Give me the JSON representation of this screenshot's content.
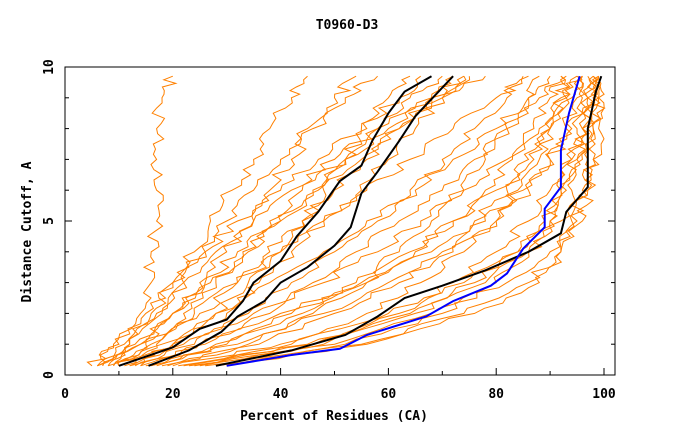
{
  "chart_data": {
    "type": "line",
    "title": "T0960-D3",
    "xlabel": "Percent of Residues (CA)",
    "ylabel": "Distance Cutoff, A",
    "xlim": [
      0,
      102
    ],
    "ylim": [
      0,
      10
    ],
    "xticks": [
      "0",
      "20",
      "40",
      "60",
      "80",
      "100"
    ],
    "yticks": [
      "0",
      "5",
      "10"
    ],
    "grid": false,
    "colors": {
      "background_models": "#ff8000",
      "highlight": "#000000",
      "selected": "#0000ff"
    },
    "background_y_levels": [
      0.3,
      1,
      2,
      3,
      4,
      5,
      6,
      7,
      8,
      9,
      9.7
    ],
    "background_series_x": [
      [
        5,
        9,
        14,
        16,
        16,
        17,
        17,
        17,
        17,
        18,
        20
      ],
      [
        6,
        12,
        18,
        22,
        28,
        35,
        42,
        50,
        58,
        68,
        75
      ],
      [
        6,
        10,
        15,
        20,
        26,
        32,
        40,
        47,
        55,
        62,
        66
      ],
      [
        7,
        13,
        20,
        27,
        33,
        40,
        47,
        55,
        62,
        70,
        78
      ],
      [
        8,
        15,
        24,
        32,
        40,
        48,
        56,
        64,
        72,
        80,
        86
      ],
      [
        10,
        18,
        28,
        38,
        48,
        56,
        64,
        72,
        80,
        86,
        90
      ],
      [
        12,
        22,
        35,
        48,
        58,
        66,
        74,
        82,
        88,
        93,
        95
      ],
      [
        14,
        25,
        40,
        55,
        65,
        72,
        80,
        86,
        90,
        94,
        96
      ],
      [
        16,
        28,
        42,
        56,
        68,
        78,
        85,
        90,
        94,
        97,
        98
      ],
      [
        9,
        16,
        22,
        28,
        34,
        40,
        46,
        52,
        58,
        64,
        70
      ],
      [
        7,
        12,
        17,
        22,
        26,
        30,
        35,
        40,
        45,
        50,
        54
      ],
      [
        6,
        11,
        16,
        20,
        24,
        27,
        31,
        35,
        38,
        42,
        45
      ],
      [
        8,
        14,
        20,
        25,
        30,
        35,
        38,
        42,
        46,
        52,
        58
      ],
      [
        11,
        20,
        30,
        36,
        42,
        48,
        55,
        60,
        65,
        70,
        74
      ],
      [
        13,
        24,
        34,
        42,
        50,
        58,
        65,
        70,
        76,
        82,
        85
      ],
      [
        20,
        40,
        60,
        74,
        84,
        90,
        92,
        94,
        95,
        96,
        96
      ],
      [
        22,
        45,
        65,
        78,
        86,
        92,
        94,
        96,
        97,
        98,
        98
      ],
      [
        25,
        50,
        68,
        82,
        90,
        95,
        97,
        98,
        99,
        99,
        99
      ],
      [
        28,
        55,
        74,
        86,
        92,
        96,
        97,
        98,
        98,
        99,
        99
      ],
      [
        24,
        48,
        62,
        72,
        80,
        86,
        90,
        94,
        96,
        98,
        98
      ],
      [
        18,
        36,
        50,
        62,
        72,
        80,
        86,
        90,
        93,
        95,
        96
      ],
      [
        15,
        32,
        48,
        60,
        70,
        76,
        82,
        87,
        90,
        93,
        95
      ],
      [
        26,
        52,
        70,
        80,
        86,
        90,
        93,
        95,
        96,
        97,
        98
      ],
      [
        30,
        56,
        76,
        88,
        92,
        94,
        96,
        97,
        98,
        99,
        99
      ],
      [
        21,
        42,
        56,
        66,
        74,
        80,
        84,
        88,
        90,
        92,
        93
      ],
      [
        12,
        20,
        28,
        34,
        40,
        44,
        48,
        52,
        56,
        60,
        64
      ],
      [
        10,
        17,
        25,
        32,
        38,
        44,
        50,
        56,
        62,
        68,
        72
      ],
      [
        9,
        14,
        20,
        26,
        32,
        38,
        44,
        52,
        60,
        68,
        74
      ],
      [
        17,
        30,
        44,
        54,
        62,
        68,
        74,
        78,
        82,
        86,
        88
      ],
      [
        19,
        34,
        46,
        56,
        64,
        72,
        78,
        83,
        87,
        90,
        92
      ],
      [
        23,
        46,
        64,
        76,
        84,
        89,
        92,
        95,
        96,
        97,
        97
      ],
      [
        14,
        26,
        38,
        46,
        54,
        62,
        70,
        76,
        82,
        88,
        92
      ]
    ],
    "highlight_series": [
      {
        "name": "black-1",
        "color": "#000000",
        "points": [
          [
            10,
            0.3
          ],
          [
            20,
            0.9
          ],
          [
            25,
            1.5
          ],
          [
            30,
            1.8
          ],
          [
            33,
            2.4
          ],
          [
            35,
            3
          ],
          [
            40,
            3.7
          ],
          [
            43,
            4.5
          ],
          [
            47,
            5.3
          ],
          [
            51,
            6.3
          ],
          [
            55,
            6.8
          ],
          [
            57,
            7.6
          ],
          [
            60,
            8.5
          ],
          [
            63,
            9.2
          ],
          [
            68,
            9.7
          ]
        ]
      },
      {
        "name": "black-2",
        "color": "#000000",
        "points": [
          [
            15.5,
            0.3
          ],
          [
            23,
            0.8
          ],
          [
            29,
            1.4
          ],
          [
            32,
            1.9
          ],
          [
            37,
            2.4
          ],
          [
            40,
            3
          ],
          [
            45,
            3.5
          ],
          [
            50,
            4.2
          ],
          [
            53,
            4.8
          ],
          [
            55,
            5.9
          ],
          [
            58,
            6.6
          ],
          [
            62,
            7.6
          ],
          [
            65,
            8.4
          ],
          [
            72,
            9.7
          ]
        ]
      },
      {
        "name": "black-3",
        "color": "#000000",
        "points": [
          [
            28,
            0.3
          ],
          [
            42,
            0.8
          ],
          [
            52,
            1.3
          ],
          [
            58,
            1.9
          ],
          [
            63,
            2.5
          ],
          [
            70,
            2.9
          ],
          [
            78,
            3.4
          ],
          [
            86,
            4.0
          ],
          [
            92,
            4.6
          ],
          [
            93,
            5.3
          ],
          [
            97,
            6.1
          ],
          [
            97,
            8
          ],
          [
            98.5,
            9.2
          ],
          [
            99.5,
            9.7
          ]
        ]
      },
      {
        "name": "blue",
        "color": "#0000ff",
        "points": [
          [
            30,
            0.3
          ],
          [
            42,
            0.65
          ],
          [
            51,
            0.85
          ],
          [
            56,
            1.3
          ],
          [
            67,
            1.9
          ],
          [
            72,
            2.4
          ],
          [
            79,
            2.9
          ],
          [
            82,
            3.3
          ],
          [
            85,
            4.1
          ],
          [
            89,
            4.8
          ],
          [
            89,
            5.4
          ],
          [
            92,
            6.1
          ],
          [
            92,
            7.3
          ],
          [
            93.5,
            8.5
          ],
          [
            95.5,
            9.7
          ]
        ]
      }
    ]
  }
}
